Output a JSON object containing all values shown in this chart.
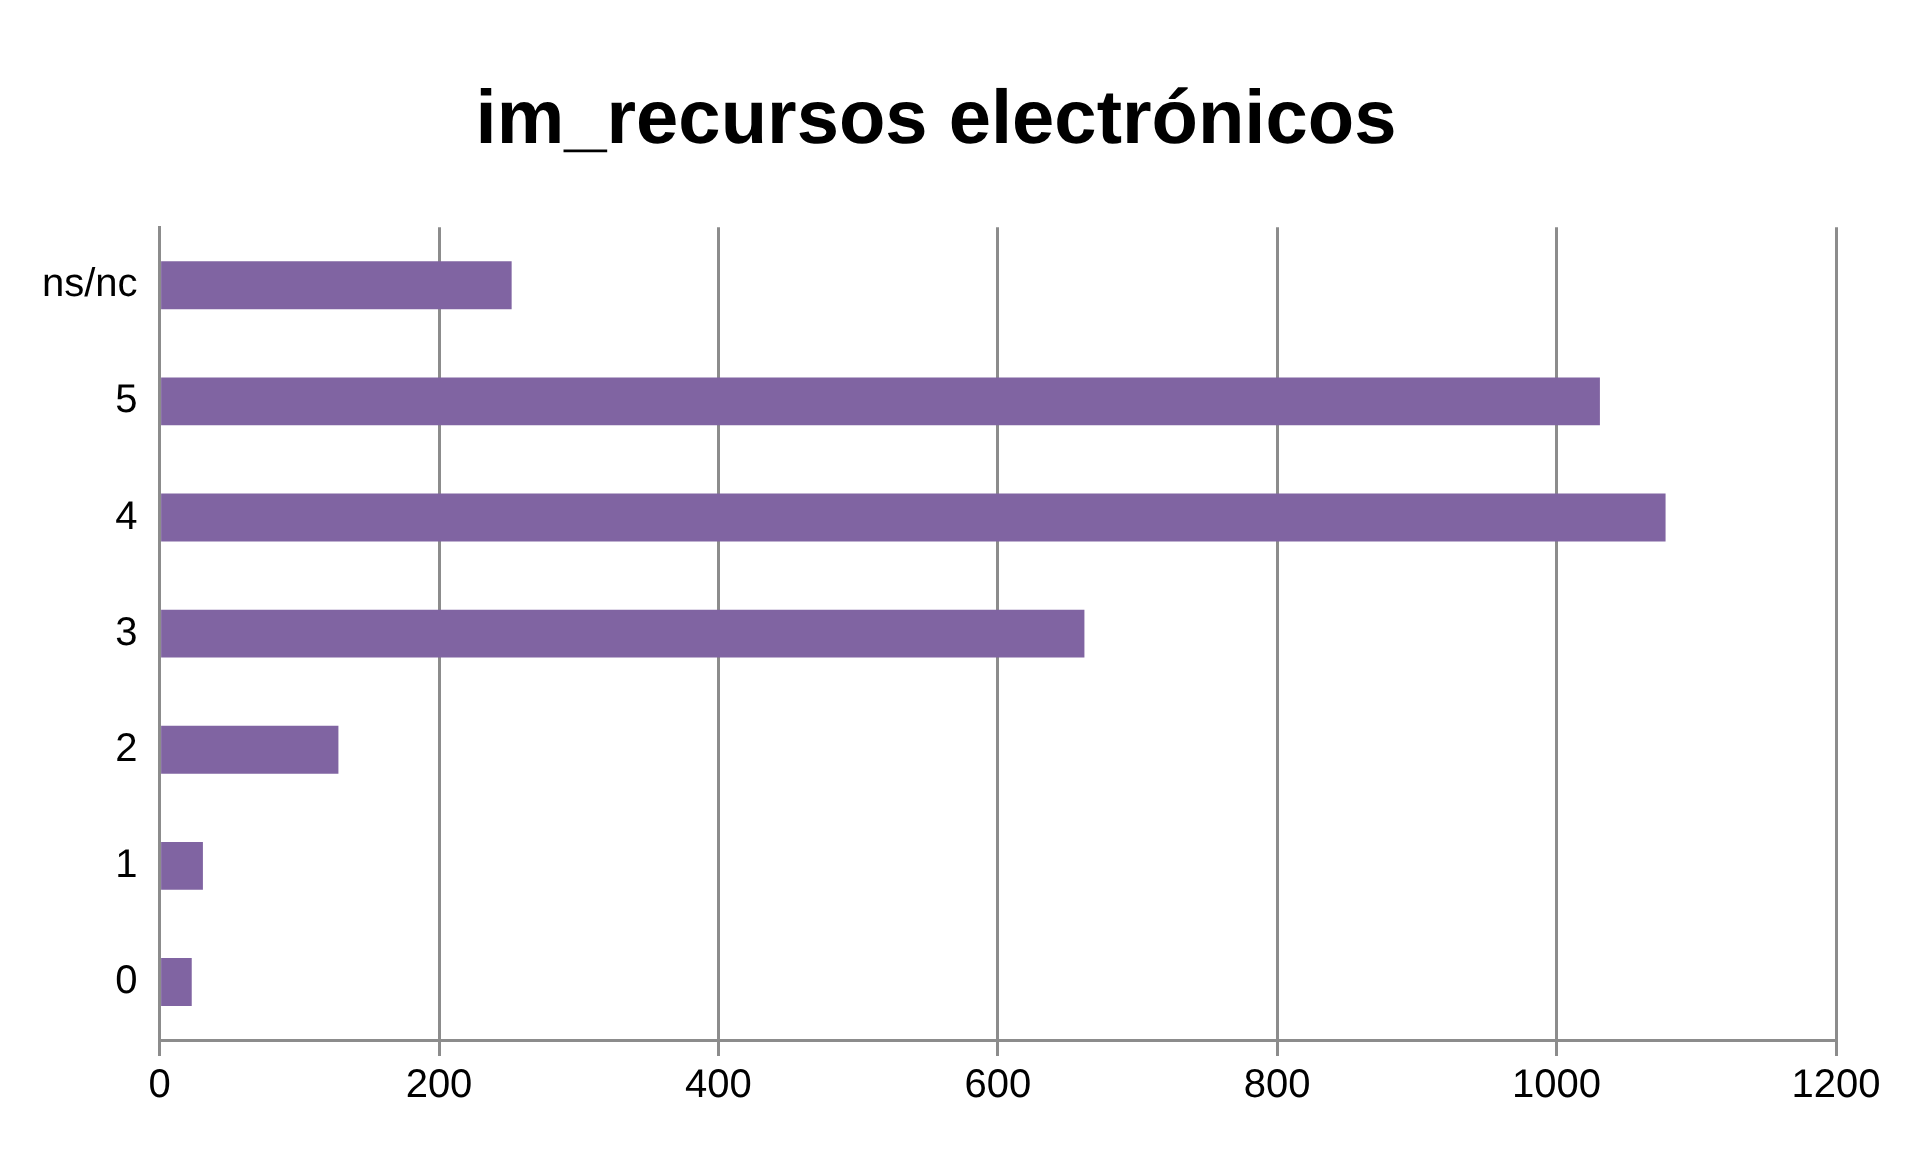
{
  "chart_data": {
    "type": "bar",
    "orientation": "horizontal",
    "title": "im_recursos electrónicos",
    "categories": [
      "ns/nc",
      "5",
      "4",
      "3",
      "2",
      "1",
      "0"
    ],
    "values": [
      252,
      1031,
      1078,
      662,
      128,
      31,
      23
    ],
    "color": "#8064a2",
    "xlim": [
      0,
      1200
    ],
    "xticks": [
      0,
      200,
      400,
      600,
      800,
      1000,
      1200
    ],
    "grid": "x",
    "legend": false
  }
}
